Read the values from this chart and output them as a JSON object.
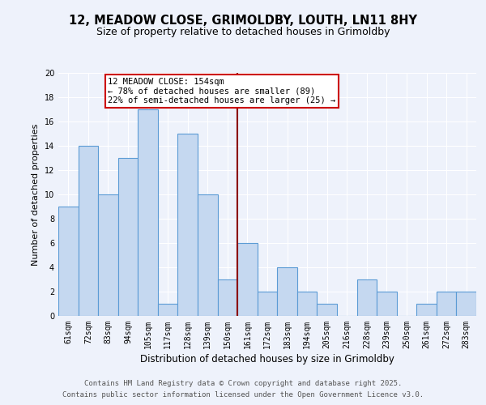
{
  "title": "12, MEADOW CLOSE, GRIMOLDBY, LOUTH, LN11 8HY",
  "subtitle": "Size of property relative to detached houses in Grimoldby",
  "xlabel": "Distribution of detached houses by size in Grimoldby",
  "ylabel": "Number of detached properties",
  "categories": [
    "61sqm",
    "72sqm",
    "83sqm",
    "94sqm",
    "105sqm",
    "117sqm",
    "128sqm",
    "139sqm",
    "150sqm",
    "161sqm",
    "172sqm",
    "183sqm",
    "194sqm",
    "205sqm",
    "216sqm",
    "228sqm",
    "239sqm",
    "250sqm",
    "261sqm",
    "272sqm",
    "283sqm"
  ],
  "values": [
    9,
    14,
    10,
    13,
    17,
    1,
    15,
    10,
    3,
    6,
    2,
    4,
    2,
    1,
    0,
    3,
    2,
    0,
    1,
    2,
    2
  ],
  "bar_color": "#c5d8f0",
  "bar_edge_color": "#5b9bd5",
  "reference_line_x": 8.5,
  "reference_line_color": "#8b0000",
  "annotation_title": "12 MEADOW CLOSE: 154sqm",
  "annotation_line1": "← 78% of detached houses are smaller (89)",
  "annotation_line2": "22% of semi-detached houses are larger (25) →",
  "annotation_box_edge": "#cc0000",
  "ylim": [
    0,
    20
  ],
  "yticks": [
    0,
    2,
    4,
    6,
    8,
    10,
    12,
    14,
    16,
    18,
    20
  ],
  "background_color": "#eef2fb",
  "grid_color": "#ffffff",
  "footer_line1": "Contains HM Land Registry data © Crown copyright and database right 2025.",
  "footer_line2": "Contains public sector information licensed under the Open Government Licence v3.0.",
  "title_fontsize": 10.5,
  "subtitle_fontsize": 9,
  "xlabel_fontsize": 8.5,
  "ylabel_fontsize": 8,
  "tick_fontsize": 7,
  "footer_fontsize": 6.5,
  "ann_fontsize": 7.5
}
